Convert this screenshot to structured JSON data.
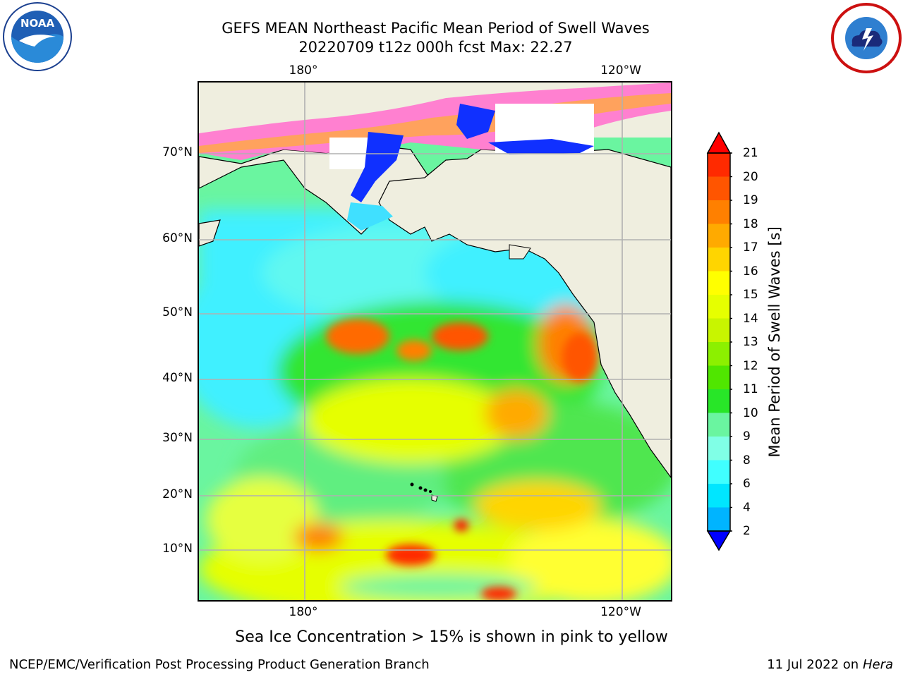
{
  "title": {
    "line1": "GEFS MEAN Northeast Pacific Mean Period of Swell Waves",
    "line2": "20220709 t12z 000h fcst   Max: 22.27"
  },
  "map": {
    "lon_labels": [
      "180°",
      "120°W"
    ],
    "lat_labels": [
      "70°N",
      "60°N",
      "50°N",
      "40°N",
      "30°N",
      "20°N",
      "10°N"
    ],
    "colors": {
      "land": "#efeedf",
      "ice_white": "#ffffff",
      "coast": "#000000",
      "grid": "#b0b0b0"
    }
  },
  "colorbar": {
    "label": "Mean Period of Swell Waves [s]",
    "ticks": [
      "21",
      "20",
      "19",
      "18",
      "17",
      "16",
      "15",
      "14",
      "13",
      "12",
      "11",
      "10",
      "9",
      "8",
      "6",
      "4",
      "2"
    ],
    "colors": [
      "#ff0000",
      "#ff2a00",
      "#ff5500",
      "#ff8000",
      "#ffaa00",
      "#ffd500",
      "#ffff00",
      "#e6ff00",
      "#c8f500",
      "#8cf000",
      "#50e600",
      "#28e628",
      "#6af5a0",
      "#80ffe6",
      "#40ffff",
      "#00e6ff",
      "#00b4ff",
      "#0064ff"
    ],
    "under_color": "#0000ff",
    "over_color": "#ff0000"
  },
  "note": "Sea Ice Concentration > 15% is shown in pink to yellow",
  "footer": {
    "left": "NCEP/EMC/Verification Post Processing Product Generation Branch",
    "right_date": "11 Jul 2022 on ",
    "right_machine": "Hera"
  },
  "logos": {
    "noaa": {
      "text": "NOAA",
      "icon": "noaa-logo-icon"
    },
    "nws": {
      "icon": "national-weather-service-logo-icon"
    }
  }
}
